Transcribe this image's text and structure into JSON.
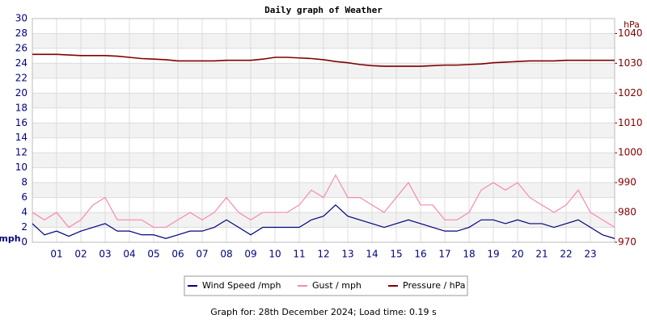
{
  "chart_data": {
    "type": "line",
    "title": "Daily graph of Weather",
    "y_label": "mph",
    "y2_label": "hPa",
    "x": [
      0,
      0.5,
      1,
      1.5,
      2,
      2.5,
      3,
      3.5,
      4,
      4.5,
      5,
      5.5,
      6,
      6.5,
      7,
      7.5,
      8,
      8.5,
      9,
      9.5,
      10,
      10.5,
      11,
      11.5,
      12,
      12.5,
      13,
      13.5,
      14,
      14.5,
      15,
      15.5,
      16,
      16.5,
      17,
      17.5,
      18,
      18.5,
      19,
      19.5,
      20,
      20.5,
      21,
      21.5,
      22,
      22.5,
      23,
      23.5,
      24
    ],
    "xlim": [
      0,
      24
    ],
    "xticks": [
      {
        "value": 1,
        "label": "01"
      },
      {
        "value": 2,
        "label": "02"
      },
      {
        "value": 3,
        "label": "03"
      },
      {
        "value": 4,
        "label": "04"
      },
      {
        "value": 5,
        "label": "05"
      },
      {
        "value": 6,
        "label": "06"
      },
      {
        "value": 7,
        "label": "07"
      },
      {
        "value": 8,
        "label": "08"
      },
      {
        "value": 9,
        "label": "09"
      },
      10,
      11,
      12,
      13,
      14,
      15,
      16,
      17,
      18,
      19,
      20,
      21,
      22,
      23
    ],
    "ylim": [
      0,
      30
    ],
    "yticks": [
      0,
      2,
      4,
      6,
      8,
      10,
      12,
      14,
      16,
      18,
      20,
      22,
      24,
      26,
      28,
      30
    ],
    "y2lim": [
      970,
      1045
    ],
    "y2ticks": [
      970,
      980,
      990,
      1000,
      1010,
      1020,
      1030,
      1040
    ],
    "grid": true,
    "series": [
      {
        "name": "Wind Speed /mph",
        "color": "#000080",
        "values": [
          2.5,
          1,
          1.5,
          0.8,
          1.5,
          2,
          2.5,
          1.5,
          1.5,
          1,
          1,
          0.5,
          1,
          1.5,
          1.5,
          2,
          3,
          2,
          1,
          2,
          2,
          2,
          2,
          3,
          3.5,
          5,
          3.5,
          3,
          2.5,
          2,
          2.5,
          3,
          2.5,
          2,
          1.5,
          1.5,
          2,
          3,
          3,
          2.5,
          3,
          2.5,
          2.5,
          2,
          2.5,
          3,
          2,
          1,
          0.5
        ]
      },
      {
        "name": "Gust / mph",
        "color": "#f58aae",
        "values": [
          4,
          3,
          4,
          2,
          3,
          5,
          6,
          3,
          3,
          3,
          2,
          2,
          3,
          4,
          3,
          4,
          6,
          4,
          3,
          4,
          4,
          4,
          5,
          7,
          6,
          9,
          6,
          6,
          5,
          4,
          6,
          8,
          5,
          5,
          3,
          3,
          4,
          7,
          8,
          7,
          8,
          6,
          5,
          4,
          5,
          7,
          4,
          3,
          2
        ]
      },
      {
        "name": "Pressure / hPa",
        "color": "#800000",
        "axis": "y2",
        "values": [
          1033,
          1033,
          1033,
          1032.8,
          1032.6,
          1032.6,
          1032.6,
          1032.4,
          1032,
          1031.6,
          1031.4,
          1031.2,
          1030.8,
          1030.8,
          1030.8,
          1030.8,
          1031,
          1031,
          1031,
          1031.4,
          1032,
          1032,
          1031.8,
          1031.6,
          1031.2,
          1030.6,
          1030.2,
          1029.6,
          1029.2,
          1029,
          1029,
          1029,
          1029,
          1029.2,
          1029.4,
          1029.4,
          1029.6,
          1029.8,
          1030.2,
          1030.4,
          1030.6,
          1030.8,
          1030.8,
          1030.8,
          1031,
          1031,
          1031,
          1031,
          1031
        ]
      }
    ],
    "footer": "Graph for: 28th December 2024; Load time: 0.19 s"
  }
}
